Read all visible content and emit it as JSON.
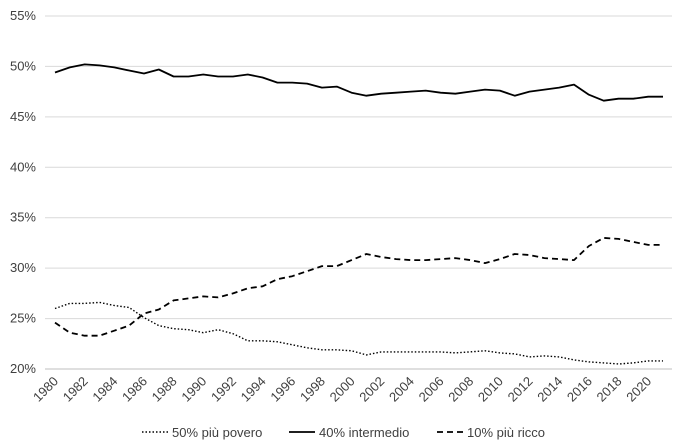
{
  "chart_data": {
    "type": "line",
    "title": "",
    "xlabel": "",
    "ylabel": "",
    "ylim": [
      20,
      55
    ],
    "y_ticks": [
      "20%",
      "25%",
      "30%",
      "35%",
      "40%",
      "45%",
      "50%",
      "55%"
    ],
    "x_ticks": [
      "1980",
      "1982",
      "1984",
      "1986",
      "1988",
      "1990",
      "1992",
      "1994",
      "1996",
      "1998",
      "2000",
      "2002",
      "2004",
      "2006",
      "2008",
      "2010",
      "2012",
      "2014",
      "2016",
      "2018",
      "2020"
    ],
    "grid": "horizontal",
    "legend_position": "bottom",
    "x": [
      1980,
      1981,
      1982,
      1983,
      1984,
      1985,
      1986,
      1987,
      1988,
      1989,
      1990,
      1991,
      1992,
      1993,
      1994,
      1995,
      1996,
      1997,
      1998,
      1999,
      2000,
      2001,
      2002,
      2003,
      2004,
      2005,
      2006,
      2007,
      2008,
      2009,
      2010,
      2011,
      2012,
      2013,
      2014,
      2015,
      2016,
      2017,
      2018,
      2019,
      2020,
      2021
    ],
    "series": [
      {
        "name": "50% più povero",
        "style": "dotted",
        "color": "#000000",
        "values": [
          26.0,
          26.5,
          26.5,
          26.6,
          26.3,
          26.1,
          25.1,
          24.3,
          24.0,
          23.9,
          23.6,
          23.9,
          23.5,
          22.8,
          22.8,
          22.7,
          22.4,
          22.1,
          21.9,
          21.9,
          21.8,
          21.4,
          21.7,
          21.7,
          21.7,
          21.7,
          21.7,
          21.6,
          21.7,
          21.8,
          21.6,
          21.5,
          21.2,
          21.3,
          21.2,
          20.9,
          20.7,
          20.6,
          20.5,
          20.6,
          20.8,
          20.8
        ]
      },
      {
        "name": "40% intermedio",
        "style": "solid",
        "color": "#000000",
        "values": [
          49.4,
          49.9,
          50.2,
          50.1,
          49.9,
          49.6,
          49.3,
          49.7,
          49.0,
          49.0,
          49.2,
          49.0,
          49.0,
          49.2,
          48.9,
          48.4,
          48.4,
          48.3,
          47.9,
          48.0,
          47.4,
          47.1,
          47.3,
          47.4,
          47.5,
          47.6,
          47.4,
          47.3,
          47.5,
          47.7,
          47.6,
          47.1,
          47.5,
          47.7,
          47.9,
          48.2,
          47.2,
          46.6,
          46.8,
          46.8,
          47.0,
          47.0
        ]
      },
      {
        "name": "10% più ricco",
        "style": "dashed",
        "color": "#000000",
        "values": [
          24.6,
          23.6,
          23.3,
          23.3,
          23.8,
          24.3,
          25.5,
          25.9,
          26.8,
          27.0,
          27.2,
          27.1,
          27.5,
          28.0,
          28.2,
          28.9,
          29.2,
          29.7,
          30.2,
          30.2,
          30.8,
          31.4,
          31.1,
          30.9,
          30.8,
          30.8,
          30.9,
          31.0,
          30.8,
          30.5,
          30.9,
          31.4,
          31.3,
          31.0,
          30.9,
          30.8,
          32.2,
          33.0,
          32.9,
          32.6,
          32.3,
          32.3
        ]
      }
    ]
  }
}
